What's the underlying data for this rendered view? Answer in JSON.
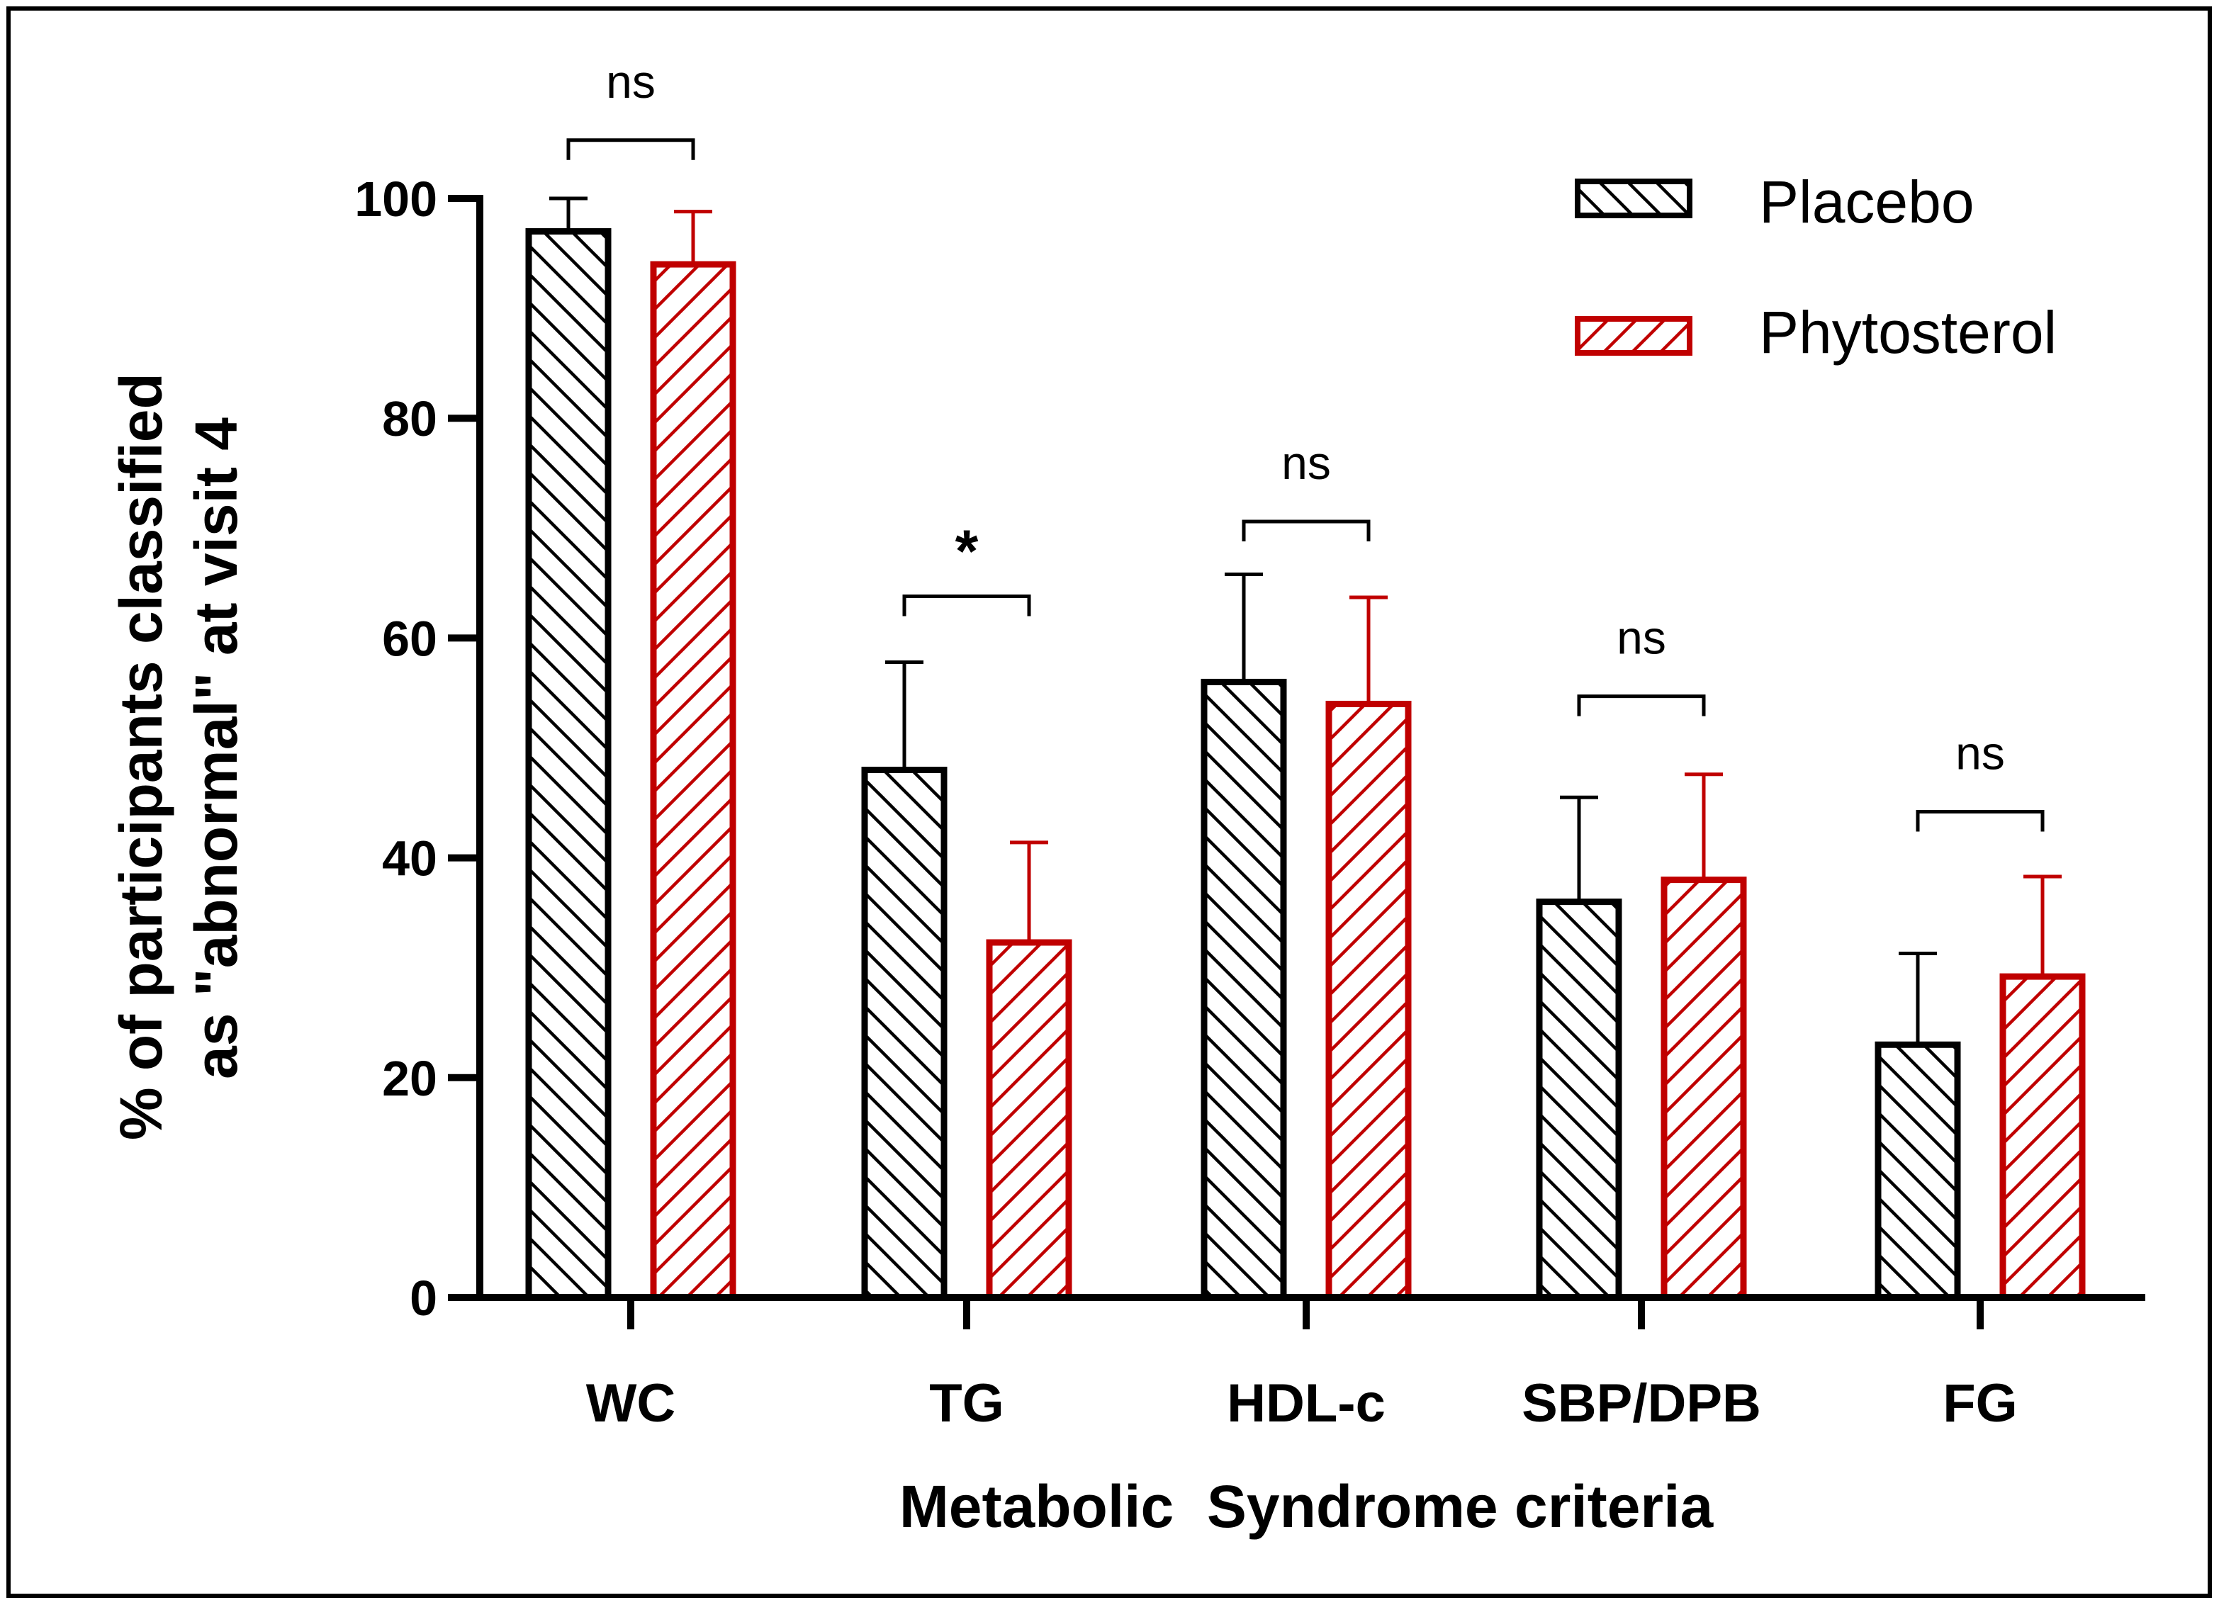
{
  "chart_data": {
    "type": "bar",
    "title": "",
    "xlabel": "Metabolic  Syndrome criteria",
    "ylabel_lines": [
      "% of participants classified",
      "as \"abnormal\" at visit 4"
    ],
    "categories": [
      "WC",
      "TG",
      "HDL-c",
      "SBP/DPB",
      "FG"
    ],
    "ylim": [
      0,
      100
    ],
    "yticks": [
      "0",
      "20",
      "40",
      "60",
      "80",
      "100"
    ],
    "legend_position": "top-right",
    "series": [
      {
        "name": "Placebo",
        "color": "#000000",
        "values": [
          97,
          48,
          56,
          36,
          23
        ],
        "error_upper": [
          100,
          57.8,
          65.8,
          45.5,
          31.3
        ]
      },
      {
        "name": "Phytosterol",
        "color": "#c00000",
        "values": [
          94,
          32.3,
          54,
          38,
          29.2
        ],
        "error_upper": [
          98.8,
          41.4,
          63.7,
          47.6,
          38.3
        ]
      }
    ],
    "significance": [
      {
        "category": "WC",
        "label": "ns",
        "bracket_level": 105.3
      },
      {
        "category": "TG",
        "label": "*",
        "bracket_level": 63.8
      },
      {
        "category": "HDL-c",
        "label": "ns",
        "bracket_level": 70.6
      },
      {
        "category": "SBP/DPB",
        "label": "ns",
        "bracket_level": 54.7
      },
      {
        "category": "FG",
        "label": "ns",
        "bracket_level": 44.2
      }
    ]
  }
}
